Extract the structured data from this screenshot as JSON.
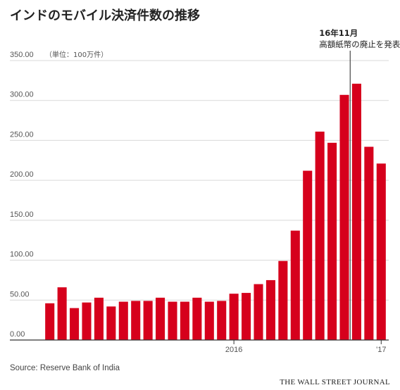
{
  "title": "インドのモバイル決済件数の推移",
  "source": "Source: Reserve Bank of India",
  "credit": "THE WALL STREET JOURNAL",
  "colors": {
    "bar": "#d6001c",
    "grid": "#d9d9d9",
    "axis": "#333333"
  },
  "chart_data": {
    "type": "bar",
    "unit_label": "（単位：100万件）",
    "ylim": [
      0,
      350
    ],
    "yticks": [
      "0.00",
      "50.00",
      "100.00",
      "150.00",
      "200.00",
      "250.00",
      "300.00",
      "350.00"
    ],
    "x_tick_labels": [
      {
        "label": "2016",
        "index": 15
      },
      {
        "label": "'17",
        "index": 27
      }
    ],
    "annotation": {
      "title": "16年11月",
      "text": "高額紙幣の廃止を発表",
      "index": 25
    },
    "grid": true,
    "values": [
      46,
      66,
      40,
      47,
      53,
      42,
      48,
      49,
      49,
      53,
      48,
      48,
      53,
      48,
      49,
      58,
      59,
      70,
      75,
      99,
      137,
      212,
      261,
      247,
      307,
      321,
      242,
      221
    ]
  }
}
